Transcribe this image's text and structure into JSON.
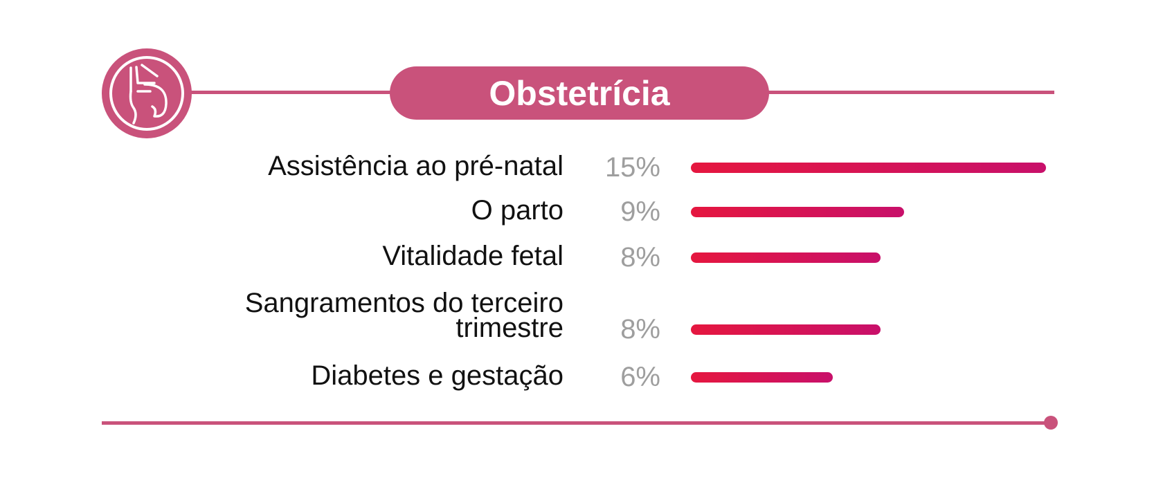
{
  "chart_data": {
    "type": "bar",
    "orientation": "horizontal",
    "title": "Obstetrícia",
    "categories": [
      "Assistência ao pré-natal",
      "O parto",
      "Vitalidade fetal",
      "Sangramentos do terceiro trimestre",
      "Diabetes e gestação"
    ],
    "category_lines": [
      [
        "Assistência ao pré-natal"
      ],
      [
        "O parto"
      ],
      [
        "Vitalidade fetal"
      ],
      [
        "Sangramentos do terceiro",
        "trimestre"
      ],
      [
        "Diabetes e gestação"
      ]
    ],
    "values": [
      15,
      9,
      8,
      8,
      6
    ],
    "value_labels": [
      "15%",
      "9%",
      "8%",
      "8%",
      "6%"
    ],
    "unit": "%",
    "xlim": [
      0,
      15
    ],
    "grid": false,
    "legend": "none"
  },
  "icon": "pregnancy-icon",
  "colors": {
    "accent": "#c9527b",
    "bar_start": "#e5173f",
    "bar_end": "#c8106a",
    "label": "#111111",
    "value": "#9e9e9e"
  }
}
